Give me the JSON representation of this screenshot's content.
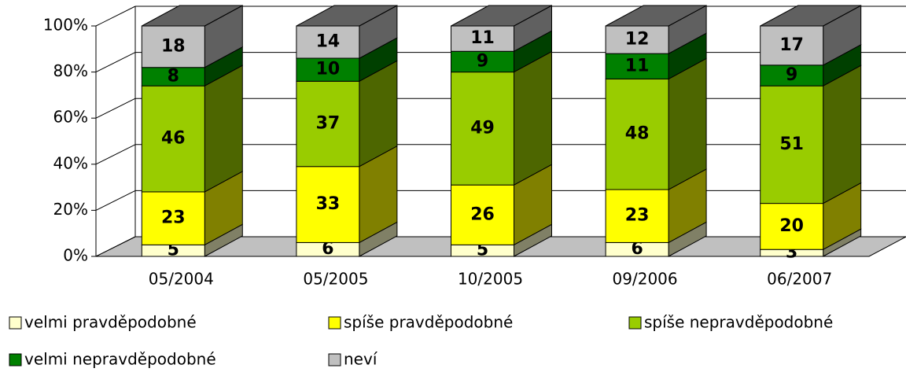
{
  "chart_data": {
    "type": "bar",
    "stacked": true,
    "categories": [
      "05/2004",
      "05/2005",
      "10/2005",
      "09/2006",
      "06/2007"
    ],
    "series": [
      {
        "name": "velmi pravděpodobné",
        "color": "#ffffcc",
        "values": [
          5,
          6,
          5,
          6,
          3
        ]
      },
      {
        "name": "spíše pravděpodobné",
        "color": "#ffff00",
        "values": [
          23,
          33,
          26,
          23,
          20
        ]
      },
      {
        "name": "spíše nepravděpodobné",
        "color": "#99cc00",
        "values": [
          46,
          37,
          49,
          48,
          51
        ]
      },
      {
        "name": "velmi nepravděpodobné",
        "color": "#008000",
        "values": [
          8,
          10,
          9,
          11,
          9
        ]
      },
      {
        "name": "neví",
        "color": "#c0c0c0",
        "values": [
          18,
          14,
          11,
          12,
          17
        ]
      }
    ],
    "ylim": [
      0,
      100
    ],
    "yticks": [
      {
        "value": 0,
        "label": "0%"
      },
      {
        "value": 20,
        "label": "20%"
      },
      {
        "value": 40,
        "label": "40%"
      },
      {
        "value": 60,
        "label": "60%"
      },
      {
        "value": 80,
        "label": "80%"
      },
      {
        "value": 100,
        "label": "100%"
      }
    ],
    "grid": true,
    "legend": "bottom"
  }
}
